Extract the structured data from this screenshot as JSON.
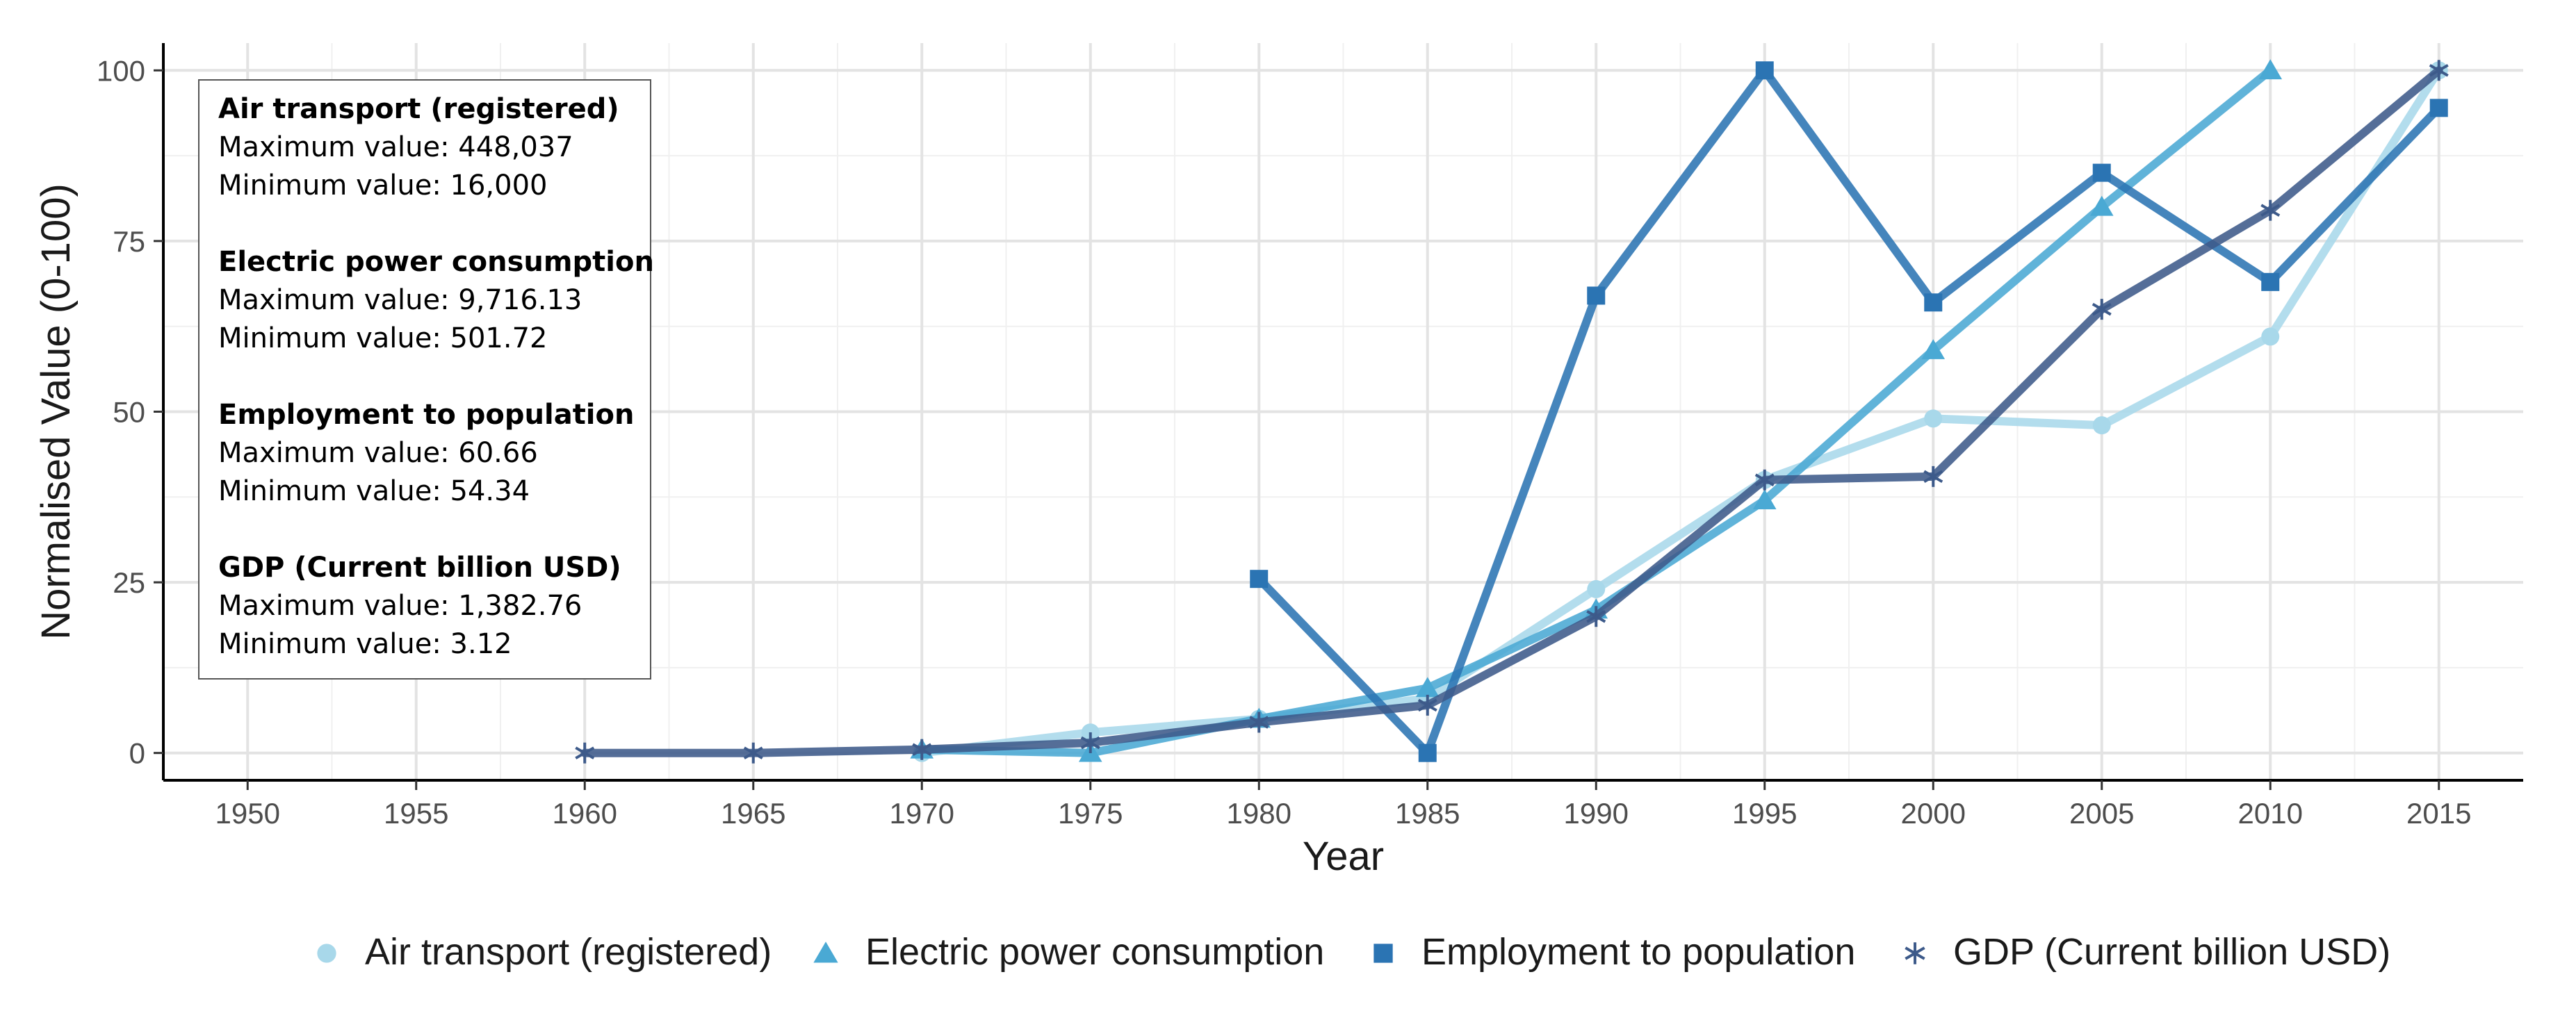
{
  "chart_data": {
    "type": "line",
    "title": "",
    "xlabel": "Year",
    "ylabel": "Normalised Value (0-100)",
    "xlim": [
      1947.5,
      2017.5
    ],
    "ylim": [
      -4,
      104
    ],
    "x_ticks": [
      1950,
      1955,
      1960,
      1965,
      1970,
      1975,
      1980,
      1985,
      1990,
      1995,
      2000,
      2005,
      2010,
      2015
    ],
    "y_ticks": [
      0,
      25,
      50,
      75,
      100
    ],
    "grid": true,
    "legend_position": "bottom",
    "series": [
      {
        "name": "Air transport (registered)",
        "color": "#a8d8ea",
        "marker": "circle",
        "x": [
          1970,
          1975,
          1980,
          1985,
          1990,
          1995,
          2000,
          2005,
          2010,
          2015
        ],
        "values": [
          0,
          3,
          5,
          8,
          24,
          40,
          49,
          48,
          61,
          100
        ]
      },
      {
        "name": "Electric power consumption",
        "color": "#4aa9d4",
        "marker": "triangle",
        "x": [
          1970,
          1975,
          1980,
          1985,
          1990,
          1995,
          2000,
          2005,
          2010
        ],
        "values": [
          0.5,
          0,
          5,
          9.5,
          21,
          37,
          59,
          80,
          100
        ]
      },
      {
        "name": "Employment to population",
        "color": "#2b74b3",
        "marker": "square",
        "x": [
          1980,
          1985,
          1990,
          1995,
          2000,
          2005,
          2010,
          2015
        ],
        "values": [
          25.5,
          0,
          67,
          100,
          66,
          85,
          69,
          94.5
        ]
      },
      {
        "name": "GDP (Current billion USD)",
        "color": "#3d5a8a",
        "marker": "asterisk",
        "x": [
          1960,
          1965,
          1970,
          1975,
          1980,
          1985,
          1990,
          1995,
          2000,
          2005,
          2010,
          2015
        ],
        "values": [
          0,
          0,
          0.5,
          1.5,
          4.5,
          7,
          20,
          40,
          40.5,
          65,
          79.5,
          100
        ]
      }
    ],
    "annotation_box": [
      {
        "heading": "Air transport (registered)",
        "max": "Maximum value: 448,037",
        "min": "Minimum value: 16,000"
      },
      {
        "heading": "Electric power consumption",
        "max": "Maximum value: 9,716.13",
        "min": "Minimum value: 501.72"
      },
      {
        "heading": "Employment to population",
        "max": "Maximum value: 60.66",
        "min": "Minimum value: 54.34"
      },
      {
        "heading": "GDP (Current billion USD)",
        "max": "Maximum value: 1,382.76",
        "min": "Minimum value: 3.12"
      }
    ]
  }
}
